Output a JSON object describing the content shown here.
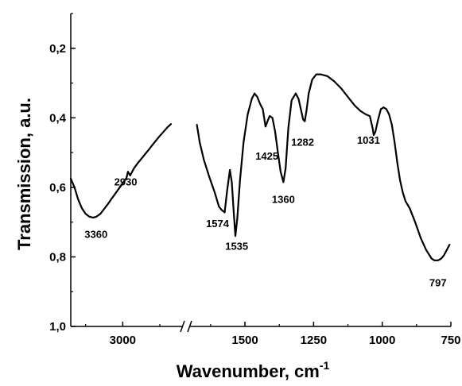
{
  "chart_data": {
    "type": "line",
    "title": "",
    "xlabel": "Wavenumber, cm",
    "xlabel_superscript": "-1",
    "ylabel": "Transmission, a.u.",
    "y_inverted": true,
    "ylim": [
      1.0,
      0.1
    ],
    "x_axis_break": true,
    "x_segments": [
      {
        "xlim": [
          3700,
          2200
        ],
        "ticks": [
          3000
        ]
      },
      {
        "xlim": [
          1700,
          750
        ],
        "ticks": [
          1500,
          1250,
          1000,
          750
        ]
      }
    ],
    "x_tick_labels": [
      "3000",
      "1500",
      "1250",
      "1000",
      "750"
    ],
    "y_ticks": [
      0.2,
      0.4,
      0.6,
      0.8,
      1.0
    ],
    "y_tick_labels": [
      "0,2",
      "0,4",
      "0,6",
      "0,8",
      "1,0"
    ],
    "series": [
      {
        "segment": 0,
        "x": [
          3700,
          3650,
          3600,
          3550,
          3500,
          3450,
          3400,
          3360,
          3300,
          3250,
          3200,
          3150,
          3100,
          3050,
          3000,
          2950,
          2930,
          2900,
          2850,
          2800,
          2750,
          2700,
          2650,
          2600,
          2550,
          2500,
          2450,
          2400,
          2350
        ],
        "y": [
          0.575,
          0.6,
          0.635,
          0.66,
          0.676,
          0.684,
          0.687,
          0.685,
          0.676,
          0.662,
          0.648,
          0.633,
          0.618,
          0.603,
          0.588,
          0.573,
          0.555,
          0.566,
          0.546,
          0.531,
          0.518,
          0.505,
          0.492,
          0.478,
          0.465,
          0.452,
          0.44,
          0.428,
          0.418
        ]
      },
      {
        "segment": 1,
        "x": [
          1675,
          1665,
          1650,
          1630,
          1610,
          1595,
          1585,
          1574,
          1565,
          1555,
          1548,
          1542,
          1535,
          1528,
          1518,
          1505,
          1490,
          1475,
          1465,
          1455,
          1445,
          1435,
          1425,
          1418,
          1410,
          1400,
          1390,
          1380,
          1370,
          1360,
          1352,
          1342,
          1330,
          1315,
          1305,
          1295,
          1288,
          1282,
          1276,
          1268,
          1255,
          1240,
          1225,
          1200,
          1175,
          1150,
          1125,
          1100,
          1080,
          1060,
          1045,
          1035,
          1031,
          1025,
          1015,
          1005,
          995,
          985,
          975,
          965,
          955,
          945,
          935,
          925,
          915,
          900,
          880,
          860,
          840,
          820,
          810,
          797,
          785,
          775,
          765,
          755
        ],
        "y": [
          0.42,
          0.47,
          0.52,
          0.57,
          0.615,
          0.655,
          0.665,
          0.672,
          0.61,
          0.55,
          0.585,
          0.66,
          0.74,
          0.69,
          0.58,
          0.47,
          0.39,
          0.345,
          0.33,
          0.34,
          0.36,
          0.375,
          0.425,
          0.41,
          0.395,
          0.4,
          0.44,
          0.5,
          0.555,
          0.585,
          0.545,
          0.43,
          0.35,
          0.33,
          0.345,
          0.38,
          0.405,
          0.41,
          0.38,
          0.33,
          0.29,
          0.275,
          0.275,
          0.28,
          0.295,
          0.315,
          0.34,
          0.365,
          0.38,
          0.39,
          0.395,
          0.43,
          0.45,
          0.44,
          0.405,
          0.375,
          0.37,
          0.375,
          0.39,
          0.42,
          0.47,
          0.53,
          0.58,
          0.615,
          0.64,
          0.66,
          0.7,
          0.745,
          0.78,
          0.805,
          0.81,
          0.81,
          0.805,
          0.795,
          0.78,
          0.765
        ]
      }
    ],
    "annotations": [
      {
        "text": "3360",
        "x": 3360,
        "y": 0.745,
        "segment": 0
      },
      {
        "text": "2930",
        "x": 2960,
        "y": 0.595,
        "segment": 0
      },
      {
        "text": "1574",
        "x": 1600,
        "y": 0.715,
        "segment": 1
      },
      {
        "text": "1535",
        "x": 1530,
        "y": 0.78,
        "segment": 1
      },
      {
        "text": "1425",
        "x": 1420,
        "y": 0.52,
        "segment": 1
      },
      {
        "text": "1360",
        "x": 1360,
        "y": 0.645,
        "segment": 1
      },
      {
        "text": "1282",
        "x": 1290,
        "y": 0.48,
        "segment": 1
      },
      {
        "text": "1031",
        "x": 1050,
        "y": 0.475,
        "segment": 1
      },
      {
        "text": "797",
        "x": 797,
        "y": 0.885,
        "segment": 1
      }
    ]
  }
}
